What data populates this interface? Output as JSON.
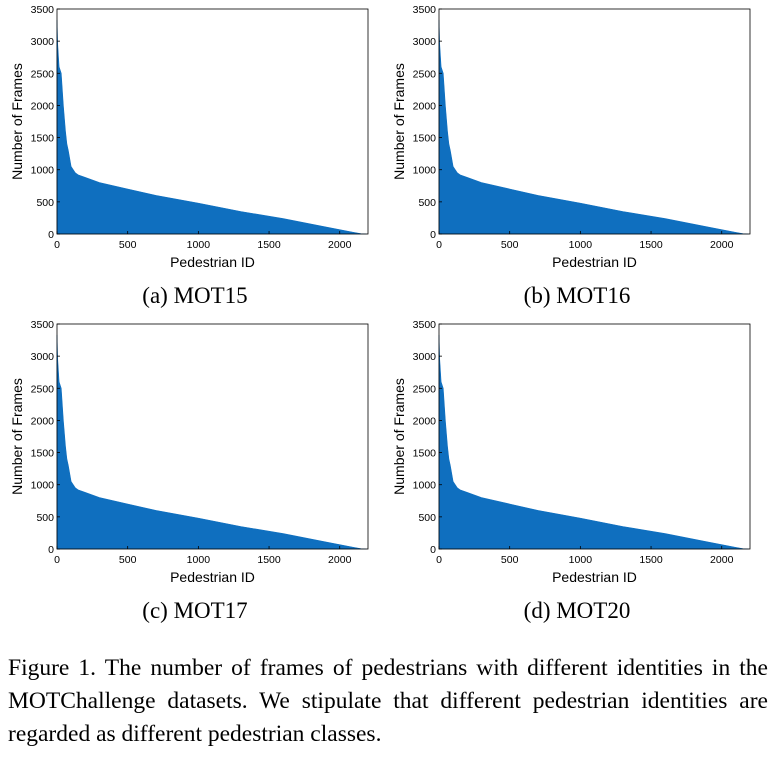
{
  "figure": {
    "caption": "Figure 1. The number of frames of pedestrians with different identities in the MOTChallenge datasets.  We stipulate that different pedestrian identities are regarded as different pedestrian classes."
  },
  "colors": {
    "fill": "#0f6fbf",
    "axis": "#000000"
  },
  "chart_data": [
    {
      "type": "area",
      "subcaption": "(a) MOT15",
      "xlabel": "Pedestrian ID",
      "ylabel": "Number of  Frames",
      "xlim": [
        0,
        2200
      ],
      "ylim": [
        0,
        3500
      ],
      "xticks": [
        0,
        500,
        1000,
        1500,
        2000
      ],
      "yticks": [
        0,
        500,
        1000,
        1500,
        2000,
        2500,
        3000,
        3500
      ],
      "grid": false,
      "x": [
        0,
        5,
        15,
        30,
        45,
        60,
        70,
        80,
        100,
        130,
        150,
        200,
        300,
        500,
        700,
        1000,
        1300,
        1600,
        1900,
        2100,
        2150,
        2190
      ],
      "y": [
        3330,
        2950,
        2600,
        2500,
        2000,
        1600,
        1400,
        1300,
        1050,
        950,
        920,
        880,
        800,
        700,
        600,
        480,
        350,
        240,
        110,
        25,
        5,
        0
      ]
    },
    {
      "type": "area",
      "subcaption": "(b) MOT16",
      "xlabel": "Pedestrian ID",
      "ylabel": "Number of  Frames",
      "xlim": [
        0,
        2200
      ],
      "ylim": [
        0,
        3500
      ],
      "xticks": [
        0,
        500,
        1000,
        1500,
        2000
      ],
      "yticks": [
        0,
        500,
        1000,
        1500,
        2000,
        2500,
        3000,
        3500
      ],
      "grid": false,
      "x": [
        0,
        5,
        15,
        30,
        45,
        60,
        70,
        80,
        100,
        130,
        150,
        200,
        300,
        500,
        700,
        1000,
        1300,
        1600,
        1900,
        2100,
        2150,
        2190
      ],
      "y": [
        3330,
        2950,
        2600,
        2500,
        2000,
        1600,
        1400,
        1300,
        1050,
        950,
        920,
        880,
        800,
        700,
        600,
        480,
        350,
        240,
        110,
        25,
        5,
        0
      ]
    },
    {
      "type": "area",
      "subcaption": "(c) MOT17",
      "xlabel": "Pedestrian ID",
      "ylabel": "Number of  Frames",
      "xlim": [
        0,
        2200
      ],
      "ylim": [
        0,
        3500
      ],
      "xticks": [
        0,
        500,
        1000,
        1500,
        2000
      ],
      "yticks": [
        0,
        500,
        1000,
        1500,
        2000,
        2500,
        3000,
        3500
      ],
      "grid": false,
      "x": [
        0,
        5,
        15,
        30,
        45,
        60,
        70,
        80,
        100,
        130,
        150,
        200,
        300,
        500,
        700,
        1000,
        1300,
        1600,
        1900,
        2100,
        2150,
        2190
      ],
      "y": [
        3330,
        2950,
        2600,
        2500,
        2000,
        1600,
        1400,
        1300,
        1050,
        950,
        920,
        880,
        800,
        700,
        600,
        480,
        350,
        240,
        110,
        25,
        5,
        0
      ]
    },
    {
      "type": "area",
      "subcaption": "(d) MOT20",
      "xlabel": "Pedestrian ID",
      "ylabel": "Number of  Frames",
      "xlim": [
        0,
        2200
      ],
      "ylim": [
        0,
        3500
      ],
      "xticks": [
        0,
        500,
        1000,
        1500,
        2000
      ],
      "yticks": [
        0,
        500,
        1000,
        1500,
        2000,
        2500,
        3000,
        3500
      ],
      "grid": false,
      "x": [
        0,
        5,
        15,
        30,
        45,
        60,
        70,
        80,
        100,
        130,
        150,
        200,
        300,
        500,
        700,
        1000,
        1300,
        1600,
        1900,
        2100,
        2150,
        2190
      ],
      "y": [
        3330,
        2950,
        2600,
        2500,
        2000,
        1600,
        1400,
        1300,
        1050,
        950,
        920,
        880,
        800,
        700,
        600,
        480,
        350,
        240,
        110,
        25,
        5,
        0
      ]
    }
  ]
}
